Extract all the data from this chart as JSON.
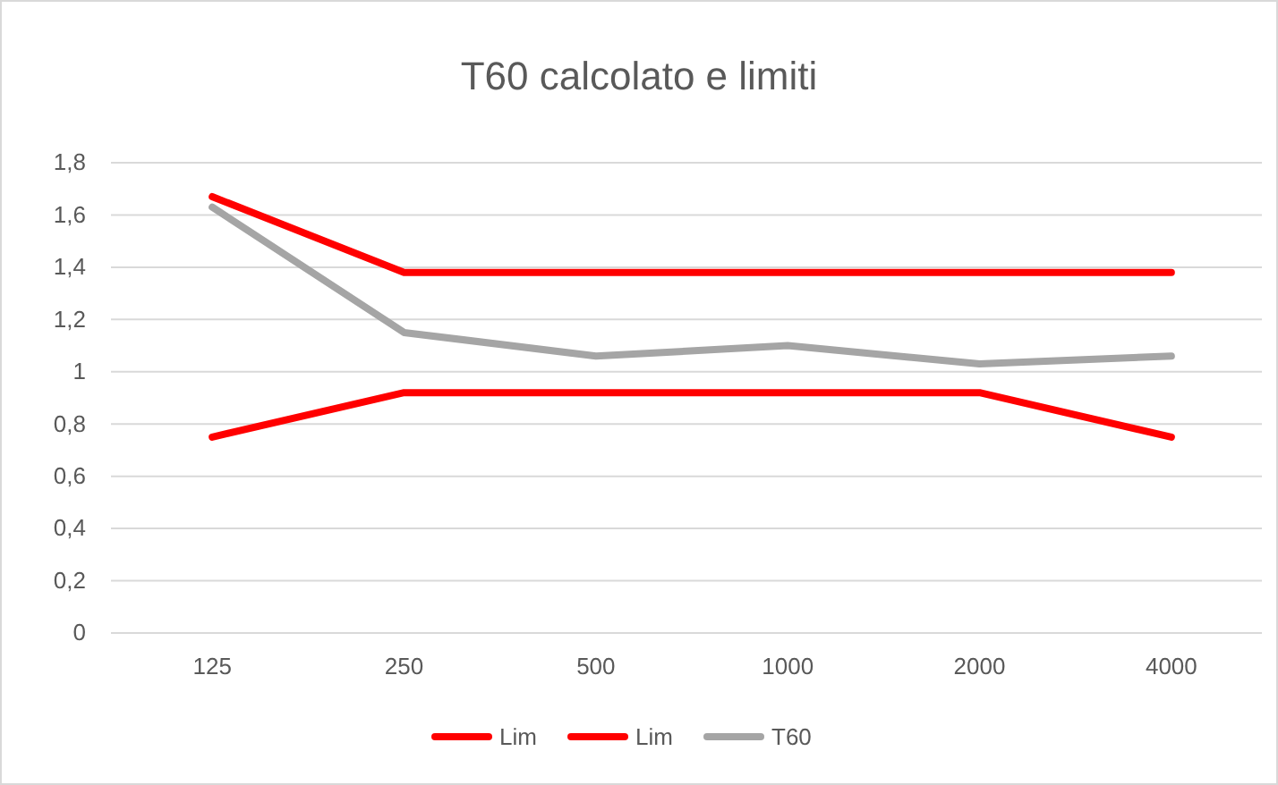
{
  "chart_data": {
    "type": "line",
    "title": "T60 calcolato e limiti",
    "categories": [
      "125",
      "250",
      "500",
      "1000",
      "2000",
      "4000"
    ],
    "series": [
      {
        "name": "Lim",
        "color": "#ff0000",
        "values": [
          1.67,
          1.38,
          1.38,
          1.38,
          1.38,
          1.38
        ]
      },
      {
        "name": "Lim",
        "color": "#ff0000",
        "values": [
          0.75,
          0.92,
          0.92,
          0.92,
          0.92,
          0.75
        ]
      },
      {
        "name": "T60",
        "color": "#a5a5a5",
        "values": [
          1.63,
          1.15,
          1.06,
          1.1,
          1.03,
          1.06
        ]
      }
    ],
    "ylim": [
      0,
      1.8
    ],
    "yticks": [
      0,
      {
        "value": 0.2,
        "label": "0,2"
      },
      {
        "value": 0.4,
        "label": "0,4"
      },
      {
        "value": 0.6,
        "label": "0,6"
      },
      {
        "value": 0.8,
        "label": "0,8"
      },
      1,
      {
        "value": 1.2,
        "label": "1,2"
      },
      {
        "value": 1.4,
        "label": "1,4"
      },
      {
        "value": 1.6,
        "label": "1,6"
      },
      {
        "value": 1.8,
        "label": "1,8"
      }
    ],
    "grid": "y",
    "legend": "bottom",
    "marker": "none",
    "line_style": "solid"
  }
}
